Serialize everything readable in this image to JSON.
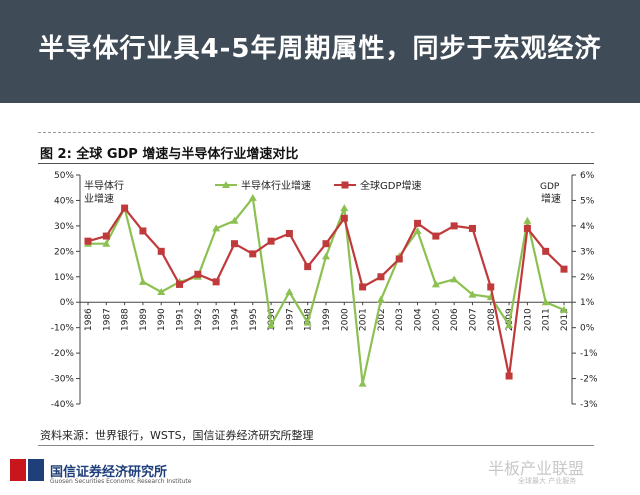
{
  "header": {
    "title": "半导体行业具4-5年周期属性，同步于宏观经济"
  },
  "figure": {
    "title": "图 2:  全球 GDP 增速与半导体行业增速对比",
    "source": "资料来源：世界银行，WSTS，国信证券经济研究所整理"
  },
  "footer": {
    "org": "国信证券经济研究所",
    "org_en": "Guosen Securities Economic Research Institute",
    "watermark": "半板产业联盟",
    "watermark_sub": "全球最大 产业服务"
  },
  "chart_data": {
    "type": "line",
    "left_axis_label": "半导体行业增速",
    "right_axis_label": "GDP增速",
    "categories": [
      "1986",
      "1987",
      "1988",
      "1989",
      "1990",
      "1991",
      "1992",
      "1993",
      "1994",
      "1995",
      "1996",
      "1997",
      "1998",
      "1999",
      "2000",
      "2001",
      "2002",
      "2003",
      "2004",
      "2005",
      "2006",
      "2007",
      "2008",
      "2009",
      "2010",
      "2011",
      "2012"
    ],
    "left_ylim": [
      -40,
      50
    ],
    "left_ticks": [
      "50%",
      "40%",
      "30%",
      "20%",
      "10%",
      "0%",
      "-10%",
      "-20%",
      "-30%",
      "-40%"
    ],
    "right_ylim": [
      -3,
      6
    ],
    "right_ticks": [
      "6%",
      "5%",
      "4%",
      "3%",
      "2%",
      "1%",
      "0%",
      "-1%",
      "-2%",
      "-3%"
    ],
    "series": [
      {
        "name": "半导体行业增速",
        "axis": "left",
        "color": "#8cc152",
        "marker": "triangle",
        "values": [
          23,
          23,
          37,
          8,
          4,
          8,
          10,
          29,
          32,
          41,
          -9,
          4,
          -8,
          18,
          37,
          -32,
          1,
          18,
          28,
          7,
          9,
          3,
          2,
          -9,
          32,
          0,
          -3
        ]
      },
      {
        "name": "全球GDP增速",
        "axis": "right",
        "color": "#c0393b",
        "marker": "square",
        "values": [
          3.4,
          3.6,
          4.7,
          3.8,
          3.0,
          1.7,
          2.1,
          1.8,
          3.3,
          2.9,
          3.4,
          3.7,
          2.4,
          3.3,
          4.3,
          1.6,
          2.0,
          2.7,
          4.1,
          3.6,
          4.0,
          3.9,
          1.6,
          -1.9,
          3.9,
          3.0,
          2.3
        ]
      }
    ],
    "grid": false,
    "legend_position": "top-center"
  }
}
